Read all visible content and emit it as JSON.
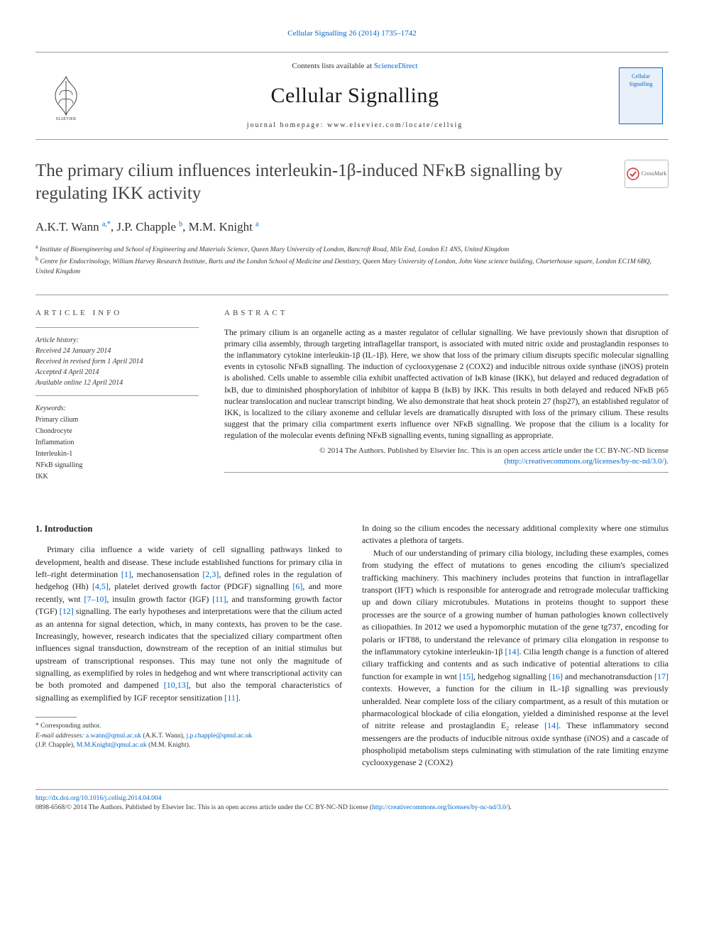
{
  "citation": "Cellular Signalling 26 (2014) 1735–1742",
  "masthead": {
    "contents_prefix": "Contents lists available at ",
    "contents_link": "ScienceDirect",
    "journal": "Cellular Signalling",
    "homepage_label": "journal homepage: ",
    "homepage_url": "www.elsevier.com/locate/cellsig",
    "cover_text": "Cellular Signalling"
  },
  "title": "The primary cilium influences interleukin-1β-induced NFκB signalling by regulating IKK activity",
  "crossmark": "CrossMark",
  "authors_html": "A.K.T. Wann <sup>a,*</sup>, J.P. Chapple <sup>b</sup>, M.M. Knight <sup>a</sup>",
  "affils": {
    "a": "Institute of Bioengineering and School of Engineering and Materials Science, Queen Mary University of London, Bancroft Road, Mile End, London E1 4NS, United Kingdom",
    "b": "Centre for Endocrinology, William Harvey Research Institute, Barts and the London School of Medicine and Dentistry, Queen Mary University of London, John Vane science building, Charterhouse square, London EC1M 6BQ, United Kingdom"
  },
  "article_info": {
    "heading": "article info",
    "history_label": "Article history:",
    "received": "Received 24 January 2014",
    "revised": "Received in revised form 1 April 2014",
    "accepted": "Accepted 4 April 2014",
    "online": "Available online 12 April 2014",
    "keywords_label": "Keywords:",
    "keywords": [
      "Primary cilium",
      "Chondrocyte",
      "Inflammation",
      "Interleukin-1",
      "NFκB signalling",
      "IKK"
    ]
  },
  "abstract": {
    "heading": "abstract",
    "text": "The primary cilium is an organelle acting as a master regulator of cellular signalling. We have previously shown that disruption of primary cilia assembly, through targeting intraflagellar transport, is associated with muted nitric oxide and prostaglandin responses to the inflammatory cytokine interleukin-1β (IL-1β). Here, we show that loss of the primary cilium disrupts specific molecular signalling events in cytosolic NFκB signalling. The induction of cyclooxygenase 2 (COX2) and inducible nitrous oxide synthase (iNOS) protein is abolished. Cells unable to assemble cilia exhibit unaffected activation of IκB kinase (IKK), but delayed and reduced degradation of IκB, due to diminished phosphorylation of inhibitor of kappa B (IκB) by IKK. This results in both delayed and reduced NFκB p65 nuclear translocation and nuclear transcript binding. We also demonstrate that heat shock protein 27 (hsp27), an established regulator of IKK, is localized to the ciliary axoneme and cellular levels are dramatically disrupted with loss of the primary cilium. These results suggest that the primary cilia compartment exerts influence over NFκB signalling. We propose that the cilium is a locality for regulation of the molecular events defining NFκB signalling events, tuning signalling as appropriate.",
    "copyright": "© 2014 The Authors. Published by Elsevier Inc. This is an open access article under the CC BY-NC-ND license",
    "license_url": "(http://creativecommons.org/licenses/by-nc-nd/3.0/)."
  },
  "intro": {
    "heading": "1. Introduction",
    "p1_pre": "Primary cilia influence a wide variety of cell signalling pathways linked to development, health and disease. These include established functions for primary cilia in left–right determination ",
    "r1": "[1]",
    "p1_a": ", mechanosensation ",
    "r2": "[2,3]",
    "p1_b": ", defined roles in the regulation of hedgehog (Hh) ",
    "r3": "[4,5]",
    "p1_c": ", platelet derived growth factor (PDGF) signalling ",
    "r4": "[6]",
    "p1_d": ", and more recently, wnt ",
    "r5": "[7–10]",
    "p1_e": ", insulin growth factor (IGF) ",
    "r6": "[11]",
    "p1_f": ", and transforming growth factor (TGF) ",
    "r7": "[12]",
    "p1_g": " signalling. The early hypotheses and interpretations were that the cilium acted as an antenna for signal detection, which, in many contexts, has proven to be the case. Increasingly, however, research indicates that the specialized ciliary compartment often influences signal transduction, downstream of the reception of an initial stimulus but upstream of transcriptional responses. This may tune not only the magnitude of signalling, as exemplified by roles in hedgehog and wnt where transcriptional activity can be both promoted and dampened ",
    "r8": "[10,13]",
    "p1_h": ", but also the temporal characteristics of signalling as exemplified by IGF receptor sensitization ",
    "r9": "[11]",
    "p1_i": ".",
    "p2_a": "In doing so the cilium encodes the necessary additional complexity where one stimulus activates a plethora of targets.",
    "p3_a": "Much of our understanding of primary cilia biology, including these examples, comes from studying the effect of mutations to genes encoding the cilium's specialized trafficking machinery. This machinery includes proteins that function in intraflagellar transport (IFT) which is responsible for anterograde and retrograde molecular trafficking up and down ciliary microtubules. Mutations in proteins thought to support these processes are the source of a growing number of human pathologies known collectively as ciliopathies. In 2012 we used a hypomorphic mutation of the gene tg737, encoding for polaris or IFT88, to understand the relevance of primary cilia elongation in response to the inflammatory cytokine interleukin-1β ",
    "r10": "[14]",
    "p3_b": ". Cilia length change is a function of altered ciliary trafficking and contents and as such indicative of potential alterations to cilia function for example in wnt ",
    "r11": "[15]",
    "p3_c": ", hedgehog signalling ",
    "r12": "[16]",
    "p3_d": " and mechanotransduction ",
    "r13": "[17]",
    "p3_e": " contexts. However, a function for the cilium in IL-1β signalling was previously unheralded. Near complete loss of the ciliary compartment, as a result of this mutation or pharmacological blockade of cilia elongation, yielded a diminished response at the level of nitrite release and prostaglandin E₂ release ",
    "r14": "[14]",
    "p3_f": ". These inflammatory second messengers are the products of inducible nitrous oxide synthase (iNOS) and a cascade of phospholipid metabolism steps culminating with stimulation of the rate limiting enzyme cyclooxygenase 2 (COX2)"
  },
  "footnote": {
    "corr": "* Corresponding author.",
    "email_label": "E-mail addresses: ",
    "e1": "a.wann@qmul.ac.uk",
    "n1": " (A.K.T. Wann), ",
    "e2": "j.p.chapple@qmul.ac.uk",
    "n2": " (J.P. Chapple), ",
    "e3": "M.M.Knight@qmul.ac.uk",
    "n3": " (M.M. Knight)."
  },
  "footer": {
    "doi": "http://dx.doi.org/10.1016/j.cellsig.2014.04.004",
    "issn_line": "0898-6568/© 2014 The Authors. Published by Elsevier Inc. This is an open access article under the CC BY-NC-ND license (",
    "license": "http://creativecommons.org/licenses/by-nc-nd/3.0/",
    "close": ")."
  },
  "colors": {
    "link": "#0066cc",
    "rule": "#999999",
    "text": "#1a1a1a"
  }
}
